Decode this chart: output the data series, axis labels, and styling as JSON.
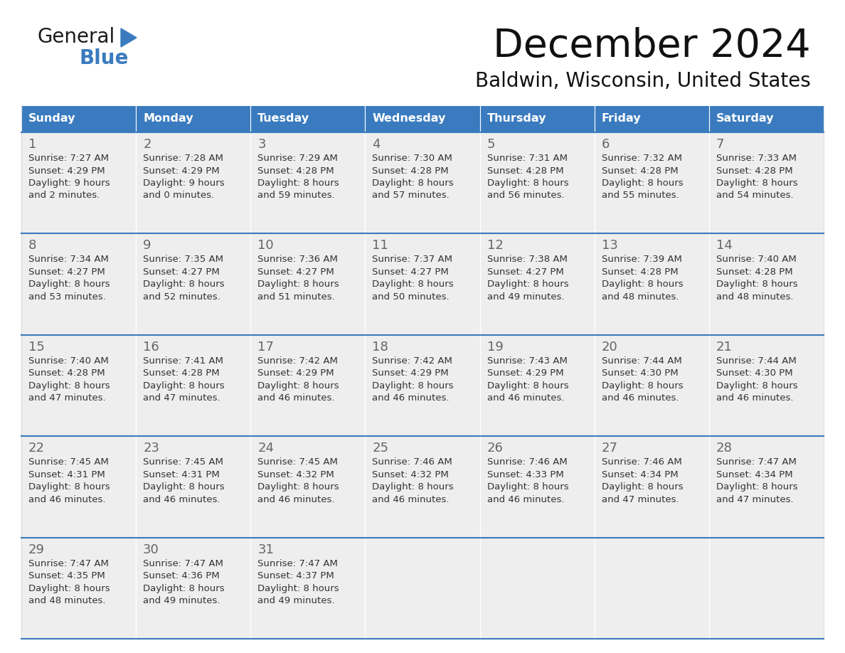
{
  "title": "December 2024",
  "subtitle": "Baldwin, Wisconsin, United States",
  "header_color": "#3a7bbf",
  "header_text_color": "#ffffff",
  "cell_bg_color": "#eeeeee",
  "text_color": "#333333",
  "day_number_color": "#666666",
  "border_color": "#3a7bbf",
  "days_of_week": [
    "Sunday",
    "Monday",
    "Tuesday",
    "Wednesday",
    "Thursday",
    "Friday",
    "Saturday"
  ],
  "weeks": [
    [
      {
        "day": "1",
        "sunrise": "7:27 AM",
        "sunset": "4:29 PM",
        "daylight_l1": "Daylight: 9 hours",
        "daylight_l2": "and 2 minutes."
      },
      {
        "day": "2",
        "sunrise": "7:28 AM",
        "sunset": "4:29 PM",
        "daylight_l1": "Daylight: 9 hours",
        "daylight_l2": "and 0 minutes."
      },
      {
        "day": "3",
        "sunrise": "7:29 AM",
        "sunset": "4:28 PM",
        "daylight_l1": "Daylight: 8 hours",
        "daylight_l2": "and 59 minutes."
      },
      {
        "day": "4",
        "sunrise": "7:30 AM",
        "sunset": "4:28 PM",
        "daylight_l1": "Daylight: 8 hours",
        "daylight_l2": "and 57 minutes."
      },
      {
        "day": "5",
        "sunrise": "7:31 AM",
        "sunset": "4:28 PM",
        "daylight_l1": "Daylight: 8 hours",
        "daylight_l2": "and 56 minutes."
      },
      {
        "day": "6",
        "sunrise": "7:32 AM",
        "sunset": "4:28 PM",
        "daylight_l1": "Daylight: 8 hours",
        "daylight_l2": "and 55 minutes."
      },
      {
        "day": "7",
        "sunrise": "7:33 AM",
        "sunset": "4:28 PM",
        "daylight_l1": "Daylight: 8 hours",
        "daylight_l2": "and 54 minutes."
      }
    ],
    [
      {
        "day": "8",
        "sunrise": "7:34 AM",
        "sunset": "4:27 PM",
        "daylight_l1": "Daylight: 8 hours",
        "daylight_l2": "and 53 minutes."
      },
      {
        "day": "9",
        "sunrise": "7:35 AM",
        "sunset": "4:27 PM",
        "daylight_l1": "Daylight: 8 hours",
        "daylight_l2": "and 52 minutes."
      },
      {
        "day": "10",
        "sunrise": "7:36 AM",
        "sunset": "4:27 PM",
        "daylight_l1": "Daylight: 8 hours",
        "daylight_l2": "and 51 minutes."
      },
      {
        "day": "11",
        "sunrise": "7:37 AM",
        "sunset": "4:27 PM",
        "daylight_l1": "Daylight: 8 hours",
        "daylight_l2": "and 50 minutes."
      },
      {
        "day": "12",
        "sunrise": "7:38 AM",
        "sunset": "4:27 PM",
        "daylight_l1": "Daylight: 8 hours",
        "daylight_l2": "and 49 minutes."
      },
      {
        "day": "13",
        "sunrise": "7:39 AM",
        "sunset": "4:28 PM",
        "daylight_l1": "Daylight: 8 hours",
        "daylight_l2": "and 48 minutes."
      },
      {
        "day": "14",
        "sunrise": "7:40 AM",
        "sunset": "4:28 PM",
        "daylight_l1": "Daylight: 8 hours",
        "daylight_l2": "and 48 minutes."
      }
    ],
    [
      {
        "day": "15",
        "sunrise": "7:40 AM",
        "sunset": "4:28 PM",
        "daylight_l1": "Daylight: 8 hours",
        "daylight_l2": "and 47 minutes."
      },
      {
        "day": "16",
        "sunrise": "7:41 AM",
        "sunset": "4:28 PM",
        "daylight_l1": "Daylight: 8 hours",
        "daylight_l2": "and 47 minutes."
      },
      {
        "day": "17",
        "sunrise": "7:42 AM",
        "sunset": "4:29 PM",
        "daylight_l1": "Daylight: 8 hours",
        "daylight_l2": "and 46 minutes."
      },
      {
        "day": "18",
        "sunrise": "7:42 AM",
        "sunset": "4:29 PM",
        "daylight_l1": "Daylight: 8 hours",
        "daylight_l2": "and 46 minutes."
      },
      {
        "day": "19",
        "sunrise": "7:43 AM",
        "sunset": "4:29 PM",
        "daylight_l1": "Daylight: 8 hours",
        "daylight_l2": "and 46 minutes."
      },
      {
        "day": "20",
        "sunrise": "7:44 AM",
        "sunset": "4:30 PM",
        "daylight_l1": "Daylight: 8 hours",
        "daylight_l2": "and 46 minutes."
      },
      {
        "day": "21",
        "sunrise": "7:44 AM",
        "sunset": "4:30 PM",
        "daylight_l1": "Daylight: 8 hours",
        "daylight_l2": "and 46 minutes."
      }
    ],
    [
      {
        "day": "22",
        "sunrise": "7:45 AM",
        "sunset": "4:31 PM",
        "daylight_l1": "Daylight: 8 hours",
        "daylight_l2": "and 46 minutes."
      },
      {
        "day": "23",
        "sunrise": "7:45 AM",
        "sunset": "4:31 PM",
        "daylight_l1": "Daylight: 8 hours",
        "daylight_l2": "and 46 minutes."
      },
      {
        "day": "24",
        "sunrise": "7:45 AM",
        "sunset": "4:32 PM",
        "daylight_l1": "Daylight: 8 hours",
        "daylight_l2": "and 46 minutes."
      },
      {
        "day": "25",
        "sunrise": "7:46 AM",
        "sunset": "4:32 PM",
        "daylight_l1": "Daylight: 8 hours",
        "daylight_l2": "and 46 minutes."
      },
      {
        "day": "26",
        "sunrise": "7:46 AM",
        "sunset": "4:33 PM",
        "daylight_l1": "Daylight: 8 hours",
        "daylight_l2": "and 46 minutes."
      },
      {
        "day": "27",
        "sunrise": "7:46 AM",
        "sunset": "4:34 PM",
        "daylight_l1": "Daylight: 8 hours",
        "daylight_l2": "and 47 minutes."
      },
      {
        "day": "28",
        "sunrise": "7:47 AM",
        "sunset": "4:34 PM",
        "daylight_l1": "Daylight: 8 hours",
        "daylight_l2": "and 47 minutes."
      }
    ],
    [
      {
        "day": "29",
        "sunrise": "7:47 AM",
        "sunset": "4:35 PM",
        "daylight_l1": "Daylight: 8 hours",
        "daylight_l2": "and 48 minutes."
      },
      {
        "day": "30",
        "sunrise": "7:47 AM",
        "sunset": "4:36 PM",
        "daylight_l1": "Daylight: 8 hours",
        "daylight_l2": "and 49 minutes."
      },
      {
        "day": "31",
        "sunrise": "7:47 AM",
        "sunset": "4:37 PM",
        "daylight_l1": "Daylight: 8 hours",
        "daylight_l2": "and 49 minutes."
      },
      null,
      null,
      null,
      null
    ]
  ]
}
